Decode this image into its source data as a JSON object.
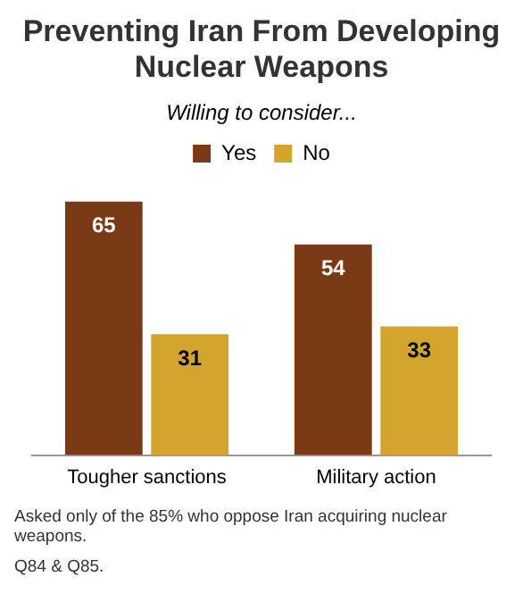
{
  "chart_data": {
    "type": "bar",
    "title": "Preventing Iran From Developing Nuclear Weapons",
    "subtitle": "Willing to consider...",
    "categories": [
      "Tougher sanctions",
      "Military action"
    ],
    "series": [
      {
        "name": "Yes",
        "color": "#7b3a16",
        "values": [
          65,
          54
        ]
      },
      {
        "name": "No",
        "color": "#d4a52c",
        "values": [
          31,
          33
        ]
      }
    ],
    "data_labels": true,
    "legend": "top",
    "annotations": [
      "Asked only of the 85% who oppose Iran acquiring nuclear weapons.",
      "Q84 & Q85."
    ]
  }
}
